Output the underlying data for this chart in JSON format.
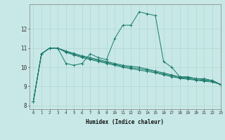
{
  "xlabel": "Humidex (Indice chaleur)",
  "background_color": "#c8e8e8",
  "grid_color": "#b0d8d0",
  "line_color": "#1a7a6a",
  "xlim": [
    -0.5,
    23
  ],
  "ylim": [
    7.8,
    13.3
  ],
  "yticks": [
    8,
    9,
    10,
    11,
    12
  ],
  "xticks": [
    0,
    1,
    2,
    3,
    4,
    5,
    6,
    7,
    8,
    9,
    10,
    11,
    12,
    13,
    14,
    15,
    16,
    17,
    18,
    19,
    20,
    21,
    22,
    23
  ],
  "series": [
    [
      8.2,
      10.7,
      11.0,
      11.0,
      10.2,
      10.1,
      10.2,
      10.7,
      10.5,
      10.4,
      11.5,
      12.2,
      12.2,
      12.9,
      12.8,
      12.7,
      10.3,
      10.0,
      9.5,
      9.5,
      9.4,
      9.4,
      9.3,
      9.1
    ],
    [
      8.2,
      10.7,
      11.0,
      11.0,
      10.85,
      10.72,
      10.6,
      10.5,
      10.4,
      10.3,
      10.2,
      10.1,
      10.05,
      10.0,
      9.9,
      9.8,
      9.7,
      9.6,
      9.5,
      9.45,
      9.4,
      9.35,
      9.3,
      9.1
    ],
    [
      8.2,
      10.7,
      11.0,
      11.0,
      10.82,
      10.68,
      10.55,
      10.45,
      10.35,
      10.25,
      10.15,
      10.05,
      9.98,
      9.92,
      9.85,
      9.75,
      9.65,
      9.55,
      9.45,
      9.4,
      9.35,
      9.3,
      9.25,
      9.1
    ],
    [
      8.2,
      10.7,
      11.0,
      11.0,
      10.78,
      10.64,
      10.5,
      10.4,
      10.3,
      10.2,
      10.1,
      10.0,
      9.92,
      9.85,
      9.78,
      9.7,
      9.6,
      9.5,
      9.42,
      9.37,
      9.32,
      9.27,
      9.22,
      9.1
    ]
  ]
}
